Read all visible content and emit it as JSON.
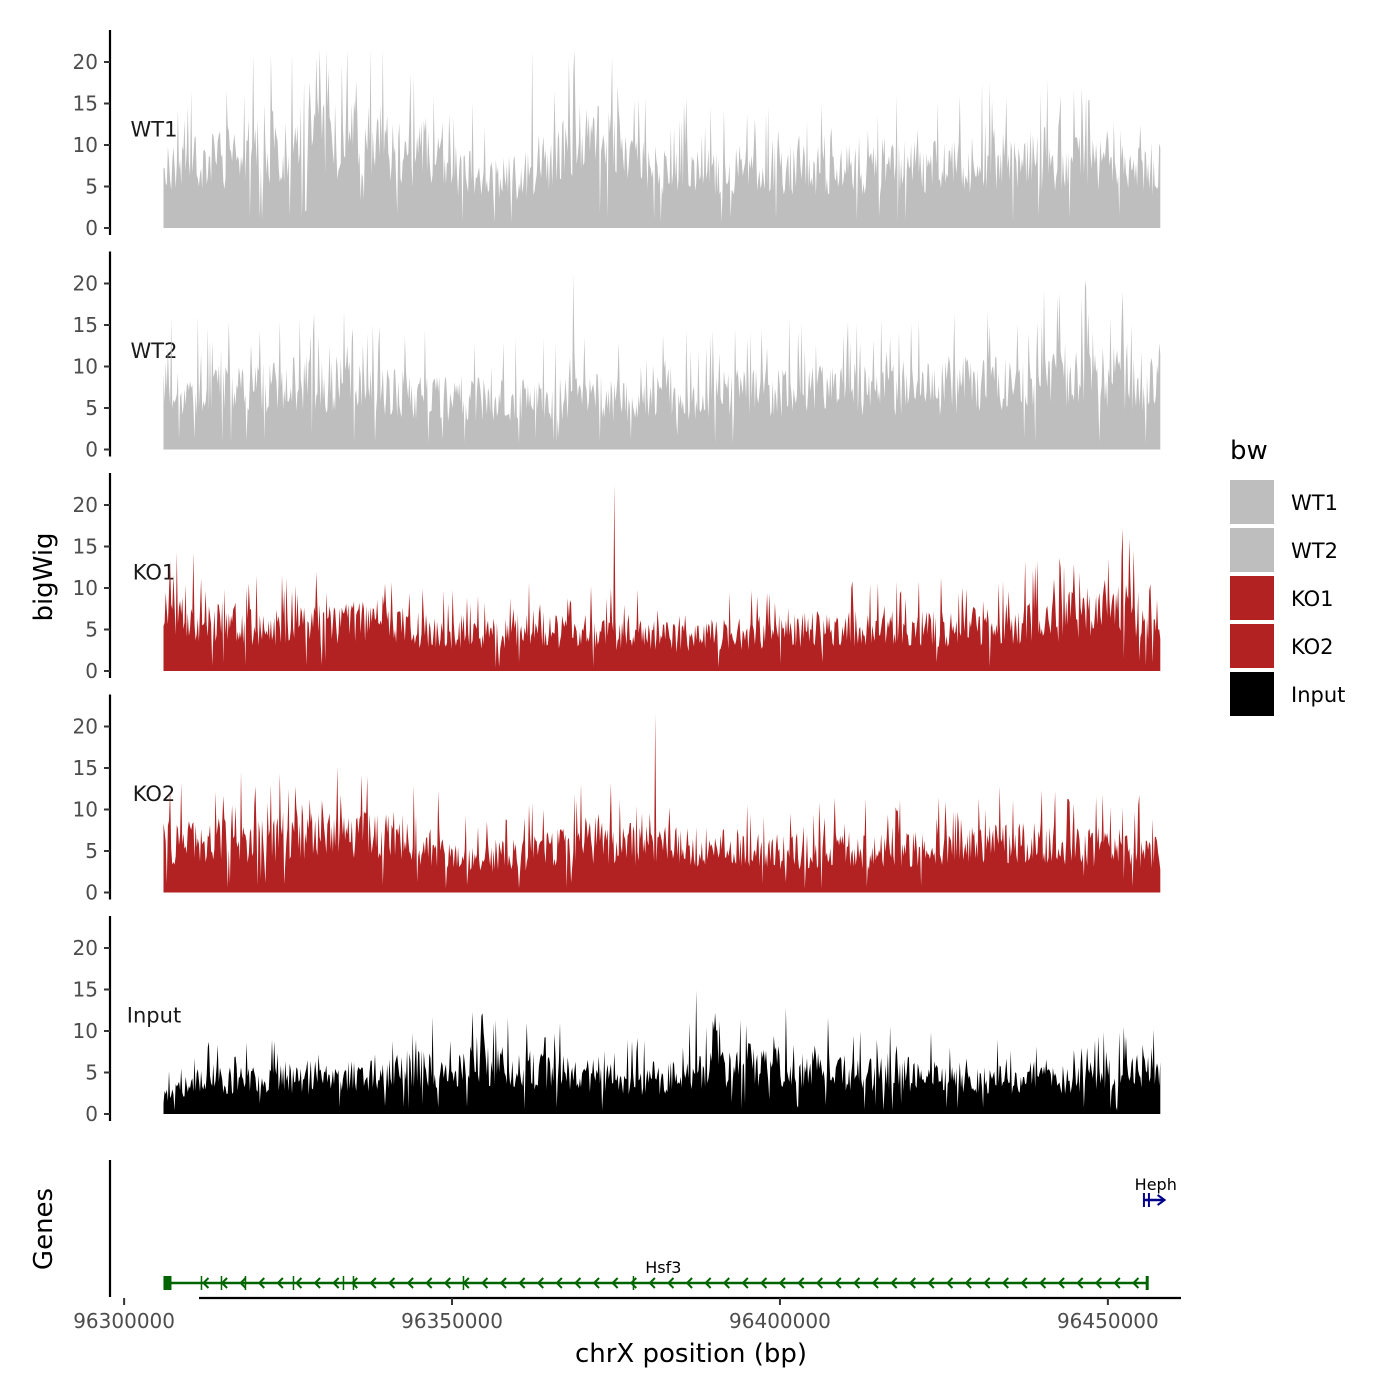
{
  "chart_data": {
    "type": "area",
    "y_axis_title": "bigWig",
    "genes_axis_title": "Genes",
    "x_axis_title": "chrX position (bp)",
    "xlim": [
      96298000,
      96461000
    ],
    "region": [
      96306000,
      96458000
    ],
    "x_ticks": [
      96300000,
      96350000,
      96400000,
      96450000
    ],
    "x_tick_labels": [
      "96300000",
      "96350000",
      "96400000",
      "96450000"
    ],
    "ylim": [
      0,
      24
    ],
    "y_ticks": [
      0,
      5,
      10,
      15,
      20
    ],
    "y_tick_labels": [
      "0",
      "5",
      "10",
      "15",
      "20"
    ],
    "tracks": [
      {
        "name": "WT1",
        "color": "#BEBEBE",
        "max": 21.5,
        "baseline": 7,
        "shape": [
          [
            96306000,
            7
          ],
          [
            96325000,
            10
          ],
          [
            96338000,
            11
          ],
          [
            96350000,
            7
          ],
          [
            96360000,
            6
          ],
          [
            96371000,
            11
          ],
          [
            96380000,
            7
          ],
          [
            96410000,
            7
          ],
          [
            96440000,
            8
          ],
          [
            96458000,
            7
          ]
        ]
      },
      {
        "name": "WT2",
        "color": "#BEBEBE",
        "max": 21.2,
        "baseline": 7,
        "shape": [
          [
            96306000,
            7
          ],
          [
            96330000,
            8
          ],
          [
            96350000,
            6
          ],
          [
            96380000,
            6
          ],
          [
            96400000,
            7
          ],
          [
            96420000,
            7
          ],
          [
            96447000,
            9
          ],
          [
            96458000,
            8
          ]
        ]
      },
      {
        "name": "KO1",
        "color": "#B22222",
        "max": 22.5,
        "baseline": 5,
        "shape": [
          [
            96306000,
            7
          ],
          [
            96320000,
            5
          ],
          [
            96338000,
            6
          ],
          [
            96352000,
            4
          ],
          [
            96362000,
            5
          ],
          [
            96385000,
            4
          ],
          [
            96405000,
            5
          ],
          [
            96420000,
            5
          ],
          [
            96440000,
            6
          ],
          [
            96452000,
            8
          ],
          [
            96458000,
            6
          ]
        ]
      },
      {
        "name": "KO2",
        "color": "#B22222",
        "max": 21.5,
        "baseline": 5,
        "shape": [
          [
            96306000,
            6
          ],
          [
            96340000,
            7
          ],
          [
            96355000,
            4
          ],
          [
            96372000,
            6
          ],
          [
            96400000,
            5
          ],
          [
            96420000,
            5
          ],
          [
            96440000,
            6
          ],
          [
            96458000,
            5
          ]
        ]
      },
      {
        "name": "Input",
        "color": "#000000",
        "max": 14.9,
        "baseline": 3.5,
        "shape": [
          [
            96306000,
            2
          ],
          [
            96312000,
            4
          ],
          [
            96330000,
            4
          ],
          [
            96352000,
            6
          ],
          [
            96380000,
            4
          ],
          [
            96395000,
            6
          ],
          [
            96410000,
            5
          ],
          [
            96440000,
            4
          ],
          [
            96458000,
            5
          ]
        ]
      }
    ],
    "legend": {
      "title": "bw",
      "entries": [
        {
          "label": "WT1",
          "color": "#BEBEBE"
        },
        {
          "label": "WT2",
          "color": "#BEBEBE"
        },
        {
          "label": "KO1",
          "color": "#B22222"
        },
        {
          "label": "KO2",
          "color": "#B22222"
        },
        {
          "label": "Input",
          "color": "#000000"
        }
      ]
    },
    "genes": [
      {
        "name": "Hsf3",
        "start": 96306000,
        "end": 96456000,
        "strand": "-",
        "color": "#006400"
      },
      {
        "name": "Heph",
        "start": 96455500,
        "end": 96458500,
        "strand": "+",
        "color": "#00008B"
      }
    ]
  }
}
